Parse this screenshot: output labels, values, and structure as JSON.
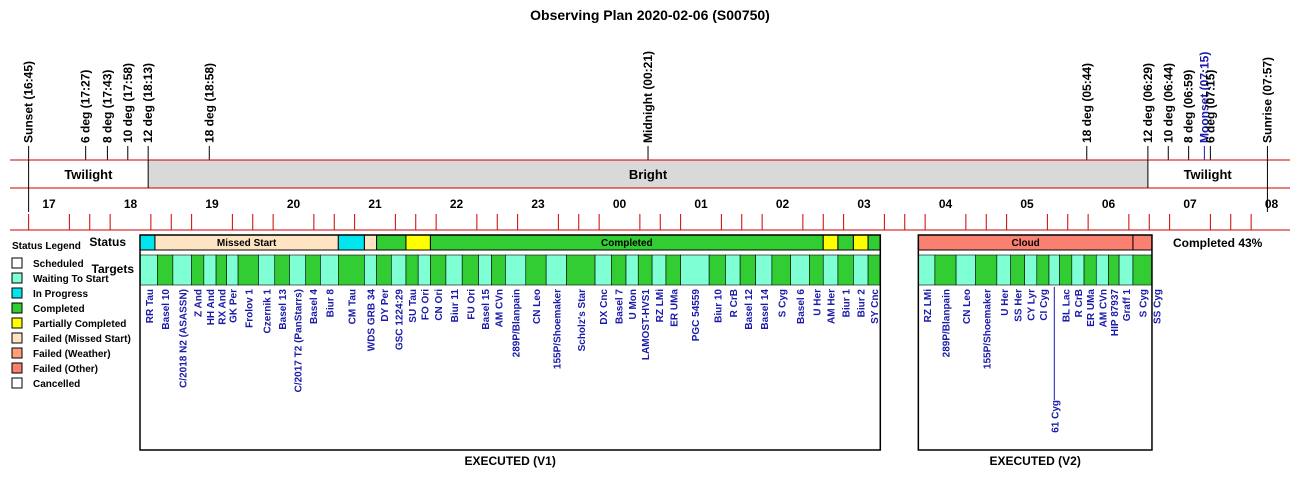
{
  "title": "Observing Plan 2020-02-06 (S00750)",
  "events": [
    {
      "label": "Sunset (16:45)",
      "hour": 16.75,
      "color": "#000000"
    },
    {
      "label": "6 deg (17:27)",
      "hour": 17.45,
      "color": "#000000"
    },
    {
      "label": "8 deg (17:43)",
      "hour": 17.7167,
      "color": "#000000"
    },
    {
      "label": "10 deg (17:58)",
      "hour": 17.9667,
      "color": "#000000"
    },
    {
      "label": "12 deg (18:13)",
      "hour": 18.2167,
      "color": "#000000"
    },
    {
      "label": "18 deg (18:58)",
      "hour": 18.9667,
      "color": "#000000"
    },
    {
      "label": "Midnight (00:21)",
      "hour": 24.35,
      "color": "#000000"
    },
    {
      "label": "18 deg (05:44)",
      "hour": 29.7333,
      "color": "#000000"
    },
    {
      "label": "12 deg (06:29)",
      "hour": 30.4833,
      "color": "#000000"
    },
    {
      "label": "10 deg (06:44)",
      "hour": 30.7333,
      "color": "#000000"
    },
    {
      "label": "8 deg (06:59)",
      "hour": 30.9833,
      "color": "#000000"
    },
    {
      "label": "Moonset (07:15)",
      "hour": 31.25,
      "color": "#1a1aaa"
    },
    {
      "label": "6 deg (07:15)",
      "hour": 31.25,
      "color": "#000000"
    },
    {
      "label": "Sunrise (07:57)",
      "hour": 31.95,
      "color": "#000000"
    }
  ],
  "bands": [
    {
      "label": "Twilight",
      "start": 16.75,
      "end": 18.2167,
      "fill": "#ffffff"
    },
    {
      "label": "Bright",
      "start": 18.2167,
      "end": 30.4833,
      "fill": "#d9d9d9"
    },
    {
      "label": "Twilight",
      "start": 30.4833,
      "end": 31.95,
      "fill": "#ffffff"
    }
  ],
  "hour_labels": [
    "17",
    "18",
    "19",
    "20",
    "21",
    "22",
    "23",
    "00",
    "01",
    "02",
    "03",
    "04",
    "05",
    "06",
    "07",
    "08"
  ],
  "row_labels": {
    "status": "Status",
    "targets": "Targets"
  },
  "status_legend": {
    "title": "Status Legend",
    "items": [
      {
        "label": "Scheduled",
        "color": "#ffffff"
      },
      {
        "label": "Waiting To Start",
        "color": "#7fffd4"
      },
      {
        "label": "In Progress",
        "color": "#00e5ee"
      },
      {
        "label": "Completed",
        "color": "#32cd32"
      },
      {
        "label": "Partially Completed",
        "color": "#ffff00"
      },
      {
        "label": "Failed (Missed Start)",
        "color": "#ffe4c4"
      },
      {
        "label": "Failed (Weather)",
        "color": "#ffa07a"
      },
      {
        "label": "Failed (Other)",
        "color": "#fa8072"
      },
      {
        "label": "Cancelled",
        "color": "#ffffff"
      }
    ]
  },
  "completion_text": "Completed 43%",
  "panels": [
    {
      "label": "EXECUTED (V1)",
      "start": 18.1167,
      "end": 27.2,
      "status_segments": [
        {
          "start": 18.1167,
          "end": 18.3,
          "color": "#00e5ee",
          "label": ""
        },
        {
          "start": 18.3,
          "end": 20.55,
          "color": "#ffe4c4",
          "label": "Missed Start"
        },
        {
          "start": 20.55,
          "end": 20.87,
          "color": "#00e5ee",
          "label": ""
        },
        {
          "start": 20.87,
          "end": 21.02,
          "color": "#ffe4c4",
          "label": ""
        },
        {
          "start": 21.02,
          "end": 21.38,
          "color": "#32cd32",
          "label": ""
        },
        {
          "start": 21.38,
          "end": 21.68,
          "color": "#ffff00",
          "label": ""
        },
        {
          "start": 21.68,
          "end": 26.5,
          "color": "#32cd32",
          "label": "Completed"
        },
        {
          "start": 26.5,
          "end": 26.68,
          "color": "#ffff00",
          "label": ""
        },
        {
          "start": 26.68,
          "end": 26.87,
          "color": "#32cd32",
          "label": ""
        },
        {
          "start": 26.87,
          "end": 27.05,
          "color": "#ffff00",
          "label": ""
        },
        {
          "start": 27.05,
          "end": 27.2,
          "color": "#32cd32",
          "label": ""
        }
      ],
      "targets": [
        {
          "name": "RR Tau",
          "start": 18.12,
          "end": 18.33,
          "color": "#7fffd4"
        },
        {
          "name": "Basel 10",
          "start": 18.33,
          "end": 18.52,
          "color": "#32cd32"
        },
        {
          "name": "C/2018 N2 (ASASSN)",
          "start": 18.52,
          "end": 18.75,
          "color": "#7fffd4"
        },
        {
          "name": "Z And",
          "start": 18.75,
          "end": 18.9,
          "color": "#32cd32"
        },
        {
          "name": "HH And",
          "start": 18.9,
          "end": 19.05,
          "color": "#7fffd4"
        },
        {
          "name": "RX And",
          "start": 19.05,
          "end": 19.18,
          "color": "#32cd32"
        },
        {
          "name": "GK Per",
          "start": 19.18,
          "end": 19.32,
          "color": "#7fffd4"
        },
        {
          "name": "Frolov 1",
          "start": 19.32,
          "end": 19.57,
          "color": "#32cd32"
        },
        {
          "name": "Czernik 1",
          "start": 19.57,
          "end": 19.77,
          "color": "#7fffd4"
        },
        {
          "name": "Basel 13",
          "start": 19.77,
          "end": 19.95,
          "color": "#32cd32"
        },
        {
          "name": "C/2017 T2 (PanStarrs)",
          "start": 19.95,
          "end": 20.15,
          "color": "#7fffd4"
        },
        {
          "name": "Basel 4",
          "start": 20.15,
          "end": 20.33,
          "color": "#32cd32"
        },
        {
          "name": "Biur 8",
          "start": 20.33,
          "end": 20.55,
          "color": "#7fffd4"
        },
        {
          "name": "CM Tau",
          "start": 20.55,
          "end": 20.87,
          "color": "#32cd32"
        },
        {
          "name": "WDS GRB 34",
          "start": 20.87,
          "end": 21.02,
          "color": "#7fffd4"
        },
        {
          "name": "DY Per",
          "start": 21.02,
          "end": 21.2,
          "color": "#32cd32"
        },
        {
          "name": "GSC 1224:29",
          "start": 21.2,
          "end": 21.38,
          "color": "#7fffd4"
        },
        {
          "name": "SU Tau",
          "start": 21.38,
          "end": 21.53,
          "color": "#32cd32"
        },
        {
          "name": "FO Ori",
          "start": 21.53,
          "end": 21.68,
          "color": "#7fffd4"
        },
        {
          "name": "CN Ori",
          "start": 21.68,
          "end": 21.87,
          "color": "#32cd32"
        },
        {
          "name": "Biur 11",
          "start": 21.87,
          "end": 22.07,
          "color": "#7fffd4"
        },
        {
          "name": "FU Ori",
          "start": 22.07,
          "end": 22.27,
          "color": "#32cd32"
        },
        {
          "name": "Basel 15",
          "start": 22.27,
          "end": 22.43,
          "color": "#7fffd4"
        },
        {
          "name": "AM CVn",
          "start": 22.43,
          "end": 22.6,
          "color": "#32cd32"
        },
        {
          "name": "289P/Blanpain",
          "start": 22.6,
          "end": 22.85,
          "color": "#7fffd4"
        },
        {
          "name": "CN Leo",
          "start": 22.85,
          "end": 23.1,
          "color": "#32cd32"
        },
        {
          "name": "155P/Shoemaker",
          "start": 23.1,
          "end": 23.35,
          "color": "#7fffd4"
        },
        {
          "name": "Scholz's Star",
          "start": 23.35,
          "end": 23.7,
          "color": "#32cd32"
        },
        {
          "name": "DX Cnc",
          "start": 23.7,
          "end": 23.9,
          "color": "#7fffd4"
        },
        {
          "name": "Basel 7",
          "start": 23.9,
          "end": 24.08,
          "color": "#32cd32"
        },
        {
          "name": "U Mon",
          "start": 24.08,
          "end": 24.23,
          "color": "#7fffd4"
        },
        {
          "name": "LAMOST-HVS1",
          "start": 24.23,
          "end": 24.4,
          "color": "#32cd32"
        },
        {
          "name": "RZ LMi",
          "start": 24.4,
          "end": 24.57,
          "color": "#7fffd4"
        },
        {
          "name": "ER UMa",
          "start": 24.57,
          "end": 24.75,
          "color": "#32cd32"
        },
        {
          "name": "PGC 54559",
          "start": 24.75,
          "end": 25.1,
          "color": "#7fffd4"
        },
        {
          "name": "Biur 10",
          "start": 25.1,
          "end": 25.3,
          "color": "#32cd32"
        },
        {
          "name": "R CrB",
          "start": 25.3,
          "end": 25.48,
          "color": "#7fffd4"
        },
        {
          "name": "Basel 12",
          "start": 25.48,
          "end": 25.67,
          "color": "#32cd32"
        },
        {
          "name": "Basel 14",
          "start": 25.67,
          "end": 25.87,
          "color": "#7fffd4"
        },
        {
          "name": "S Cyg",
          "start": 25.87,
          "end": 26.1,
          "color": "#32cd32"
        },
        {
          "name": "Basel 6",
          "start": 26.1,
          "end": 26.33,
          "color": "#7fffd4"
        },
        {
          "name": "U Her",
          "start": 26.33,
          "end": 26.5,
          "color": "#32cd32"
        },
        {
          "name": "AM Her",
          "start": 26.5,
          "end": 26.68,
          "color": "#7fffd4"
        },
        {
          "name": "Biur 1",
          "start": 26.68,
          "end": 26.87,
          "color": "#32cd32"
        },
        {
          "name": "Biur 2",
          "start": 26.87,
          "end": 27.05,
          "color": "#7fffd4"
        },
        {
          "name": "SY Cnc",
          "start": 27.05,
          "end": 27.2,
          "color": "#32cd32"
        }
      ]
    },
    {
      "label": "EXECUTED (V2)",
      "start": 27.6667,
      "end": 30.5333,
      "status_segments": [
        {
          "start": 27.6667,
          "end": 30.3,
          "color": "#fa8072",
          "label": "Cloud"
        },
        {
          "start": 30.3,
          "end": 30.5333,
          "color": "#fa8072",
          "label": ""
        }
      ],
      "targets": [
        {
          "name": "RZ LMi",
          "start": 27.67,
          "end": 27.87,
          "color": "#7fffd4"
        },
        {
          "name": "289P/Blanpain",
          "start": 27.87,
          "end": 28.13,
          "color": "#32cd32"
        },
        {
          "name": "CN Leo",
          "start": 28.13,
          "end": 28.37,
          "color": "#7fffd4"
        },
        {
          "name": "155P/Shoemaker",
          "start": 28.37,
          "end": 28.63,
          "color": "#32cd32"
        },
        {
          "name": "U Her",
          "start": 28.63,
          "end": 28.8,
          "color": "#7fffd4"
        },
        {
          "name": "SS Her",
          "start": 28.8,
          "end": 28.97,
          "color": "#32cd32"
        },
        {
          "name": "CY Lyr",
          "start": 28.97,
          "end": 29.12,
          "color": "#7fffd4"
        },
        {
          "name": "CI Cyg",
          "start": 29.12,
          "end": 29.27,
          "color": "#32cd32"
        },
        {
          "name": "61 Cyg",
          "start": 29.27,
          "end": 29.4,
          "color": "#7fffd4",
          "low": true
        },
        {
          "name": "BL Lac",
          "start": 29.4,
          "end": 29.55,
          "color": "#32cd32"
        },
        {
          "name": "R CrB",
          "start": 29.55,
          "end": 29.7,
          "color": "#7fffd4"
        },
        {
          "name": "ER UMa",
          "start": 29.7,
          "end": 29.85,
          "color": "#32cd32"
        },
        {
          "name": "AM CVn",
          "start": 29.85,
          "end": 30.0,
          "color": "#7fffd4"
        },
        {
          "name": "HIP 87937",
          "start": 30.0,
          "end": 30.13,
          "color": "#32cd32"
        },
        {
          "name": "Graff 1",
          "start": 30.13,
          "end": 30.3,
          "color": "#7fffd4"
        },
        {
          "name": "S Cyg",
          "start": 30.3,
          "end": 30.53,
          "color": "#32cd32"
        },
        {
          "name": "SS Cyg",
          "start": 30.53,
          "end": 30.53,
          "color": "#7fffd4"
        }
      ]
    }
  ]
}
